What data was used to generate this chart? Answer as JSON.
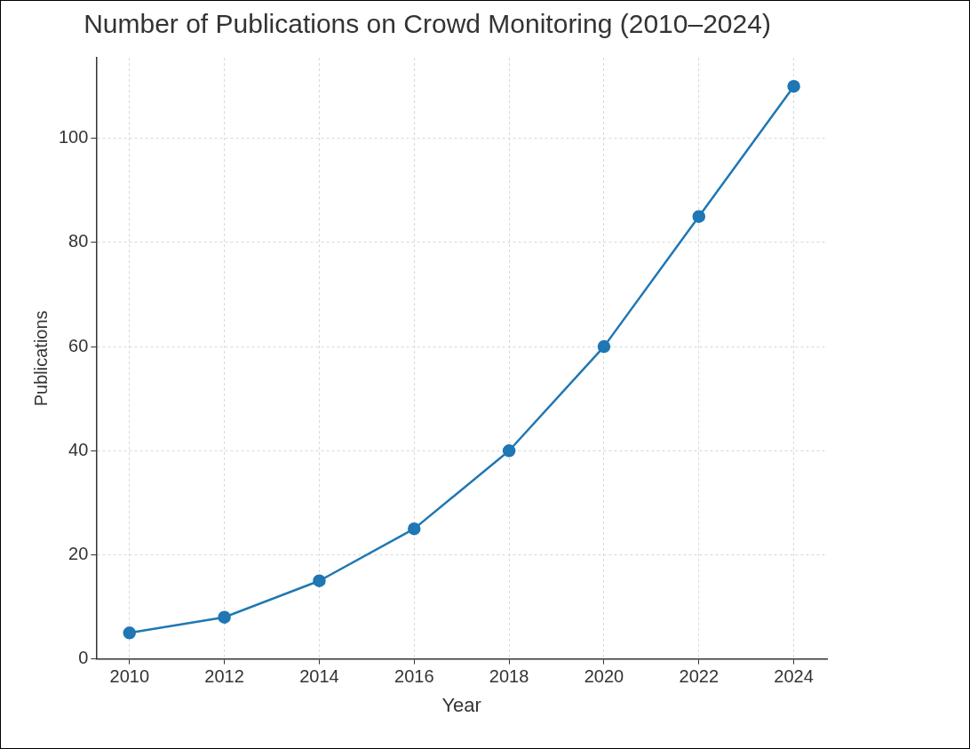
{
  "chart_data": {
    "type": "line",
    "title": "Number of Publications on Crowd Monitoring (2010–2024)",
    "xlabel": "Year",
    "ylabel": "Publications",
    "x": [
      2010,
      2012,
      2014,
      2016,
      2018,
      2020,
      2022,
      2024
    ],
    "series": [
      {
        "color": "#1f77b4",
        "values": [
          5,
          8,
          15,
          25,
          40,
          60,
          85,
          110
        ]
      }
    ],
    "xlim": [
      2009.3,
      2024.7
    ],
    "xticks": [
      2010,
      2012,
      2014,
      2016,
      2018,
      2020,
      2022,
      2024
    ],
    "ylim": [
      0,
      115.5
    ],
    "yticks": [
      0,
      20,
      40,
      60,
      80,
      100
    ],
    "grid": true,
    "marker": "circle",
    "line_style": "solid",
    "legend": false
  }
}
